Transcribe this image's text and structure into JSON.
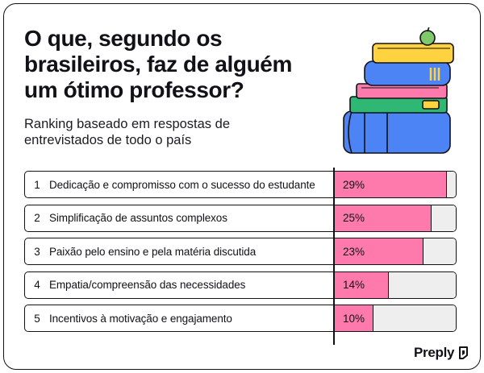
{
  "title": "O que, segundo os brasileiros, faz de alguém um ótimo professor?",
  "subtitle": "Ranking baseado em respostas de entrevistados de todo o país",
  "brand": "Preply",
  "colors": {
    "bar": "#ff7aac",
    "track": "#eeeeee",
    "ink": "#121117"
  },
  "chart_data": {
    "type": "bar",
    "orientation": "horizontal",
    "xlim": [
      0,
      32
    ],
    "items": [
      {
        "rank": "1",
        "label": "Dedicação e compromisso com o sucesso do estudante",
        "value": 29,
        "value_label": "29%"
      },
      {
        "rank": "2",
        "label": "Simplificação de assuntos complexos",
        "value": 25,
        "value_label": "25%"
      },
      {
        "rank": "3",
        "label": "Paixão pelo ensino e pela matéria discutida",
        "value": 23,
        "value_label": "23%"
      },
      {
        "rank": "4",
        "label": "Empatia/compreensão das necessidades",
        "value": 14,
        "value_label": "14%"
      },
      {
        "rank": "5",
        "label": "Incentivos à motivação e engajamento",
        "value": 10,
        "value_label": "10%"
      }
    ]
  }
}
